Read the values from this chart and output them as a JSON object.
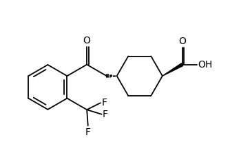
{
  "bg_color": "#ffffff",
  "line_color": "#000000",
  "lw": 1.3,
  "figsize": [
    3.34,
    2.38
  ],
  "dpi": 100,
  "xlim": [
    0,
    10
  ],
  "ylim": [
    0,
    7.15
  ]
}
